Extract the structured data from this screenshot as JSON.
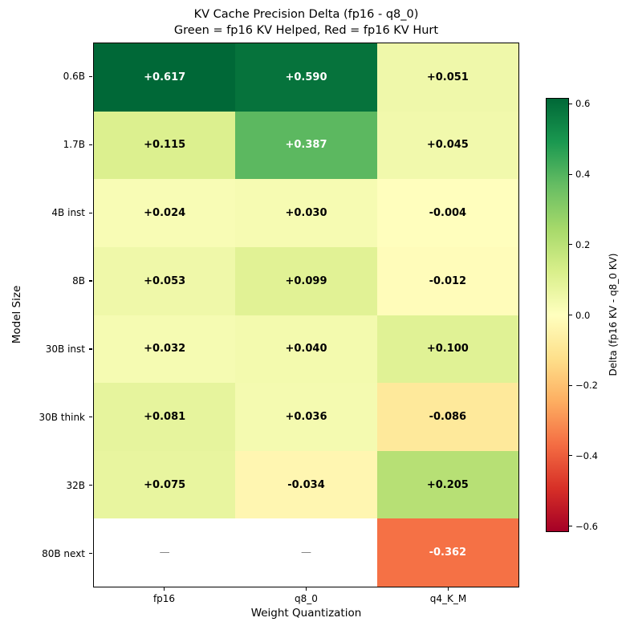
{
  "chart_data": {
    "type": "heatmap",
    "title": "KV Cache Precision Delta (fp16 - q8_0)",
    "subtitle": "Green = fp16 KV Helped, Red = fp16 KV Hurt",
    "xlabel": "Weight Quantization",
    "ylabel": "Model Size",
    "x_categories": [
      "fp16",
      "q8_0",
      "q4_K_M"
    ],
    "y_categories": [
      "0.6B",
      "1.7B",
      "4B inst",
      "8B",
      "30B inst",
      "30B think",
      "32B",
      "80B next"
    ],
    "values": [
      [
        0.617,
        0.59,
        0.051
      ],
      [
        0.115,
        0.387,
        0.045
      ],
      [
        0.024,
        0.03,
        -0.004
      ],
      [
        0.053,
        0.099,
        -0.012
      ],
      [
        0.032,
        0.04,
        0.1
      ],
      [
        0.081,
        0.036,
        -0.086
      ],
      [
        0.075,
        -0.034,
        0.205
      ],
      [
        null,
        null,
        -0.362
      ]
    ],
    "cell_labels": [
      [
        "+0.617",
        "+0.590",
        "+0.051"
      ],
      [
        "+0.115",
        "+0.387",
        "+0.045"
      ],
      [
        "+0.024",
        "+0.030",
        "-0.004"
      ],
      [
        "+0.053",
        "+0.099",
        "-0.012"
      ],
      [
        "+0.032",
        "+0.040",
        "+0.100"
      ],
      [
        "+0.081",
        "+0.036",
        "-0.086"
      ],
      [
        "+0.075",
        "-0.034",
        "+0.205"
      ],
      [
        "—",
        "—",
        "-0.362"
      ]
    ],
    "vmin": -0.617,
    "vmax": 0.617,
    "grid": false,
    "colormap": {
      "name": "RdYlGn",
      "anchors": [
        "#a50026",
        "#d73027",
        "#f46d43",
        "#fdae61",
        "#fee08b",
        "#ffffbf",
        "#d9ef8b",
        "#a6d96a",
        "#66bd63",
        "#1a9850",
        "#006837"
      ]
    },
    "missing_color": "#ffffff",
    "missing_text_color": "#808080",
    "cell_text_light": "#ffffff",
    "cell_text_dark": "#000000",
    "colorbar": {
      "label": "Delta (fp16 KV - q8_0 KV)",
      "position": "right",
      "ticks": [
        "0.6",
        "0.4",
        "0.2",
        "0.0",
        "−0.2",
        "−0.4",
        "−0.6"
      ],
      "tick_values": [
        0.6,
        0.4,
        0.2,
        0.0,
        -0.2,
        -0.4,
        -0.6
      ]
    }
  }
}
